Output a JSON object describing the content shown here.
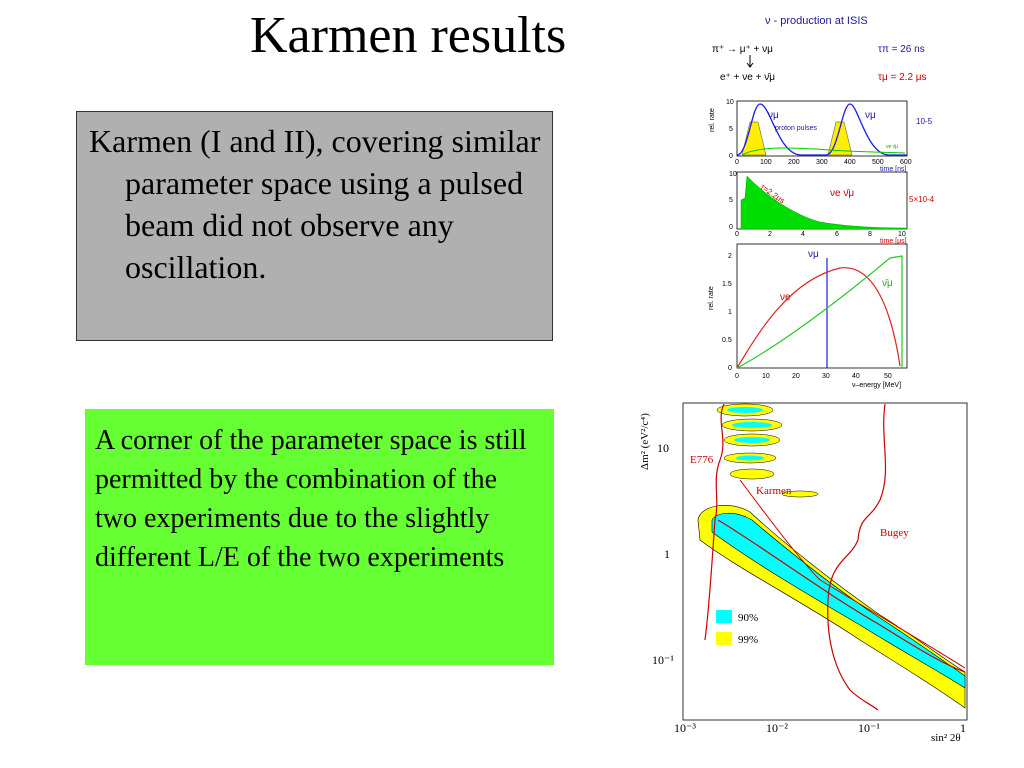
{
  "slide": {
    "title": "Karmen results",
    "box1_text": "Karmen (I and II), covering similar parameter space using a pulsed beam did not observe any oscillation.",
    "box2_text": "A corner of the parameter space is still permitted by the combination of the two experiments due to the slightly different L/E of the two experiments"
  },
  "isis_figure": {
    "title": "ν - production at ISIS",
    "decay_line1": "π⁺ → μ⁺ + νμ",
    "decay_line2": "e⁺ + νe + ν̄μ",
    "tau_pi": "τπ = 26 ns",
    "tau_mu": "τμ = 2.2 μs",
    "panel1": {
      "ylabel": "rel. rate",
      "y_ticks": [
        "10",
        "5",
        "0"
      ],
      "x_ticks": [
        "0",
        "100",
        "200",
        "300",
        "400",
        "500",
        "600"
      ],
      "xlabel": "time [ns]",
      "label_numu_1": "νμ",
      "label_numu_2": "νμ",
      "label_pulses": "proton pulses",
      "label_factor": "10-5",
      "label_small": "νe ν̄μ"
    },
    "panel2": {
      "y_ticks": [
        "10",
        "5",
        "0"
      ],
      "x_ticks": [
        "0",
        "2",
        "4",
        "6",
        "8",
        "10"
      ],
      "xlabel": "time [μs]",
      "label_tau": "τ=2.2μs",
      "label_species": "νe  ν̄μ",
      "label_factor": "5×10-4"
    },
    "panel3": {
      "ylabel": "rel. rate",
      "y_ticks": [
        "2",
        "1.5",
        "1",
        "0.5",
        "0"
      ],
      "x_ticks": [
        "0",
        "10",
        "20",
        "30",
        "40",
        "50"
      ],
      "xlabel": "ν–energy [MeV]",
      "label_numu": "νμ",
      "label_nue": "νe",
      "label_numubar": "ν̄μ"
    }
  },
  "exclusion_plot": {
    "ylabel": "Δm² (eV²/c⁴)",
    "xlabel": "sin² 2θ",
    "y_ticks": [
      "10",
      "1",
      "10⁻¹"
    ],
    "x_ticks": [
      "10⁻³",
      "10⁻²",
      "10⁻¹",
      "1"
    ],
    "curve_labels": {
      "e776": "E776",
      "karmen": "Karmen",
      "bugey": "Bugey"
    },
    "legend": [
      {
        "label": "90%",
        "color": "#00ffff"
      },
      {
        "label": "99%",
        "color": "#ffff00"
      }
    ],
    "line_color": "#cc0000"
  }
}
